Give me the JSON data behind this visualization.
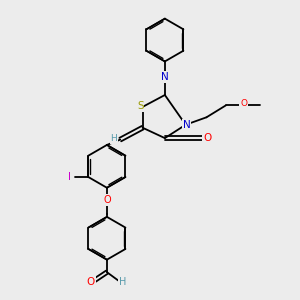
{
  "bg_color": "#ececec",
  "atom_colors": {
    "S": "#999900",
    "N": "#0000cc",
    "O": "#ff0000",
    "I": "#cc00cc",
    "C": "#000000",
    "H": "#5599aa"
  },
  "bond_color": "#000000",
  "lw": 1.3
}
